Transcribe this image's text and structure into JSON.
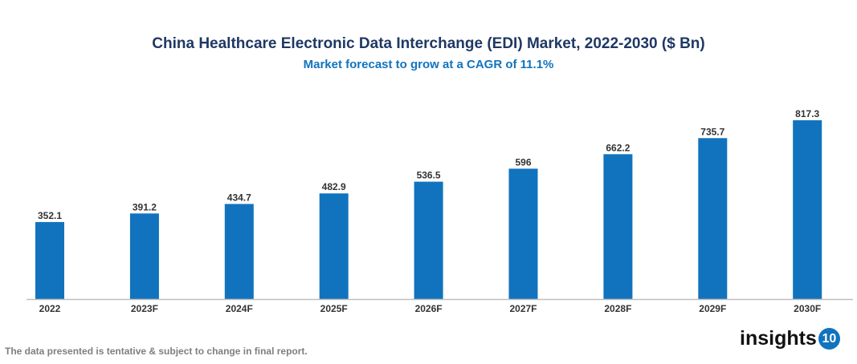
{
  "chart_data": {
    "type": "bar",
    "title": "China Healthcare Electronic Data Interchange (EDI) Market, 2022-2030 ($ Bn)",
    "subtitle": "Market forecast to grow at a CAGR of 11.1%",
    "categories": [
      "2022",
      "2023F",
      "2024F",
      "2025F",
      "2026F",
      "2027F",
      "2028F",
      "2029F",
      "2030F"
    ],
    "values": [
      352.1,
      391.2,
      434.7,
      482.9,
      536.5,
      596,
      662.2,
      735.7,
      817.3
    ],
    "ylim": [
      0,
      900
    ],
    "grid": false,
    "bar_color": "#1173be"
  },
  "footer": {
    "note": "The data presented is tentative & subject to change in final report.",
    "logo_text": "insights",
    "logo_number": "10"
  }
}
